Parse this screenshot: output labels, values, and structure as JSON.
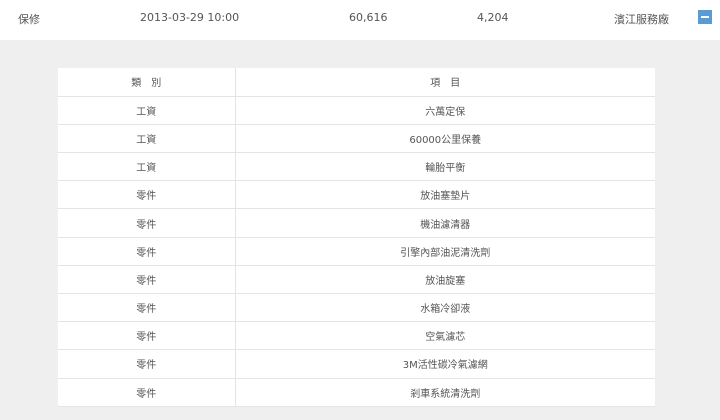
{
  "record": {
    "type": "保修",
    "datetime": "2013-03-29 10:00",
    "mileage": "60,616",
    "amount": "4,204",
    "shop": "濱江服務廠",
    "collapse_icon": "minus-icon",
    "accent": "#5b9bd5"
  },
  "table": {
    "headers": [
      "類　別",
      "項　目"
    ],
    "rows": [
      [
        "工資",
        "六萬定保"
      ],
      [
        "工資",
        "60000公里保養"
      ],
      [
        "工資",
        "輪胎平衡"
      ],
      [
        "零件",
        "放油塞墊片"
      ],
      [
        "零件",
        "機油濾清器"
      ],
      [
        "零件",
        "引擎內部油泥清洗劑"
      ],
      [
        "零件",
        "放油旋塞"
      ],
      [
        "零件",
        "水箱冷卻液"
      ],
      [
        "零件",
        "空氣濾芯"
      ],
      [
        "零件",
        "3M活性碳冷氣濾網"
      ],
      [
        "零件",
        "剎車系統清洗劑"
      ]
    ]
  }
}
